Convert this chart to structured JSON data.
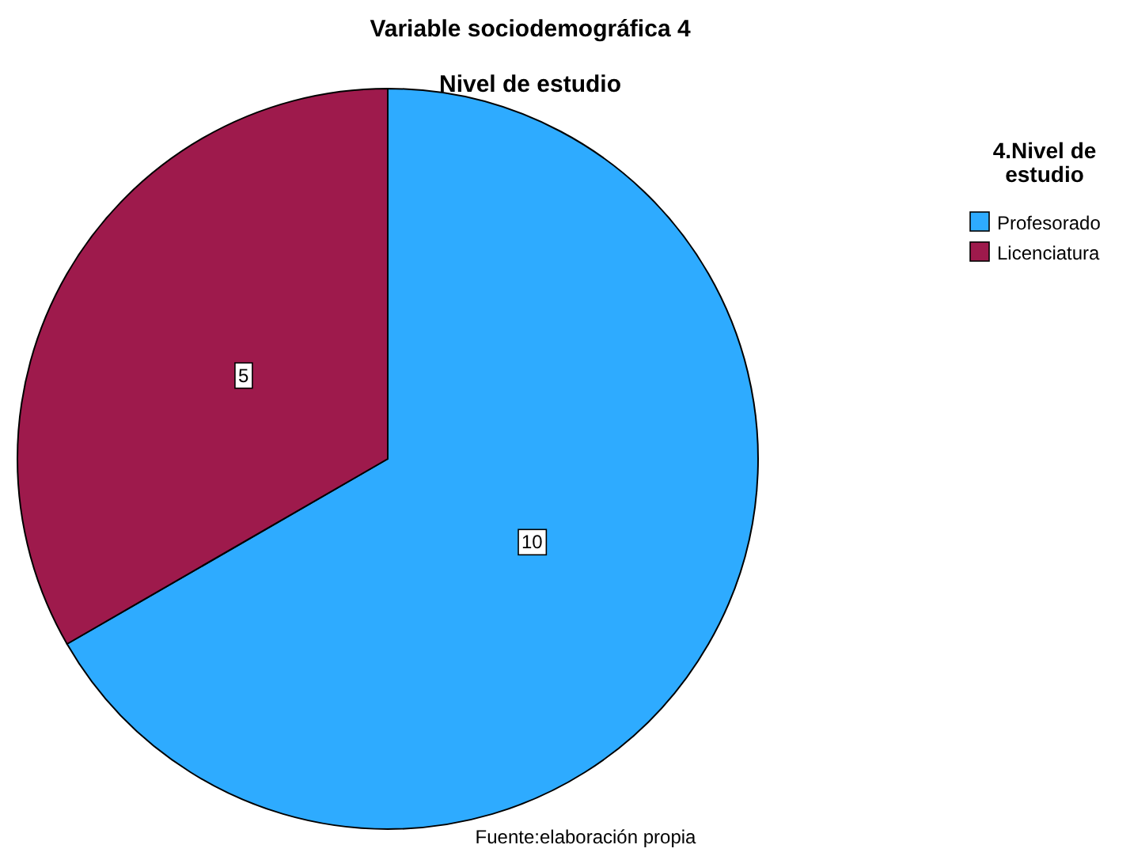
{
  "chart_data": {
    "type": "pie",
    "title": "Variable sociodemográfica 4",
    "subtitle": "Nivel de estudio",
    "legend_title": "4.Nivel de estudio",
    "categories": [
      "Profesorado",
      "Licenciatura"
    ],
    "values": [
      10,
      5
    ],
    "colors": [
      "#2eabff",
      "#9e1a4c"
    ],
    "data_labels": true,
    "legend": "right",
    "annotations": [
      "Fuente:elaboración propia"
    ]
  }
}
